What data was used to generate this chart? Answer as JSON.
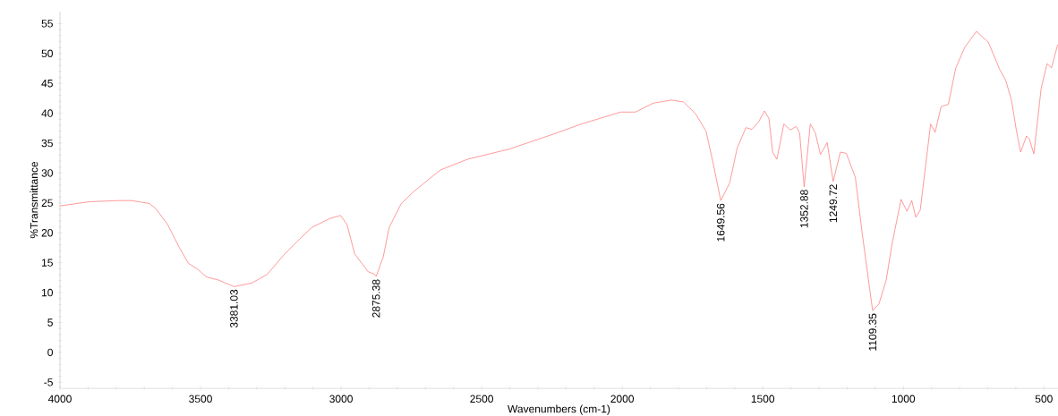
{
  "chart_data": {
    "type": "line",
    "xlabel": "Wavenumbers (cm-1)",
    "ylabel": "%Transmittance",
    "xlim": [
      4000,
      450
    ],
    "ylim": [
      -6,
      57
    ],
    "xticks": [
      4000,
      3500,
      3000,
      2500,
      2000,
      1500,
      1000,
      500
    ],
    "yticks": [
      -5,
      0,
      5,
      10,
      15,
      20,
      25,
      30,
      35,
      40,
      45,
      50,
      55
    ],
    "marker": "none",
    "line_style": "solid",
    "x": [
      4000,
      3896,
      3789,
      3746,
      3682,
      3660,
      3617,
      3575,
      3543,
      3510,
      3478,
      3436,
      3381.03,
      3318,
      3264,
      3200,
      3147,
      3104,
      3040,
      3002,
      2979,
      2952,
      2925,
      2904,
      2882,
      2875.38,
      2850,
      2829,
      2786,
      2744,
      2679,
      2647,
      2551,
      2402,
      2252,
      2145,
      2006,
      1953,
      1889,
      1825,
      1782,
      1739,
      1702,
      1676,
      1649.56,
      1618,
      1591,
      1560,
      1539,
      1513,
      1494,
      1478,
      1465,
      1450,
      1425,
      1402,
      1381,
      1369,
      1352.88,
      1331,
      1313,
      1295,
      1271,
      1249.72,
      1224,
      1203,
      1171,
      1145,
      1109.35,
      1087,
      1061,
      1040,
      1022,
      1008,
      987,
      970,
      956,
      940,
      903,
      887,
      866,
      840,
      814,
      782,
      740,
      698,
      657,
      636,
      615,
      599,
      583,
      562,
      552,
      536,
      510,
      489,
      473,
      451
    ],
    "series": [
      {
        "color": "#ff8080",
        "values": [
          24.5,
          25.2,
          25.4,
          25.4,
          24.9,
          24.1,
          21.4,
          17.5,
          14.9,
          13.9,
          12.6,
          12.1,
          11.0,
          11.6,
          13.0,
          16.5,
          19.0,
          20.9,
          22.4,
          22.9,
          21.4,
          16.5,
          14.8,
          13.5,
          13.1,
          12.7,
          16.0,
          20.9,
          24.9,
          26.8,
          29.3,
          30.5,
          32.3,
          34.0,
          36.4,
          38.2,
          40.2,
          40.2,
          41.7,
          42.2,
          41.9,
          39.9,
          37.0,
          31.5,
          25.4,
          28.3,
          34.2,
          37.6,
          37.3,
          38.7,
          40.4,
          39.1,
          33.5,
          32.3,
          38.2,
          37.2,
          37.8,
          36.7,
          27.7,
          38.2,
          36.7,
          33.1,
          35.1,
          28.6,
          33.5,
          33.3,
          29.3,
          19.4,
          7.0,
          8.1,
          12.1,
          18.2,
          22.4,
          25.6,
          23.6,
          25.4,
          22.6,
          23.8,
          38.2,
          36.8,
          41.1,
          41.5,
          47.5,
          51.0,
          53.7,
          51.9,
          47.3,
          45.5,
          42.1,
          37.4,
          33.5,
          36.2,
          35.7,
          33.2,
          44.1,
          48.3,
          47.6,
          51.5
        ]
      }
    ],
    "annotations": [
      {
        "text": "3381.03",
        "x": 3381.03,
        "y": 11.0
      },
      {
        "text": "2875.38",
        "x": 2875.38,
        "y": 12.7
      },
      {
        "text": "1649.56",
        "x": 1649.56,
        "y": 25.4
      },
      {
        "text": "1352.88",
        "x": 1352.88,
        "y": 27.7
      },
      {
        "text": "1249.72",
        "x": 1249.72,
        "y": 28.6
      },
      {
        "text": "1109.35",
        "x": 1109.35,
        "y": 7.0
      }
    ]
  }
}
